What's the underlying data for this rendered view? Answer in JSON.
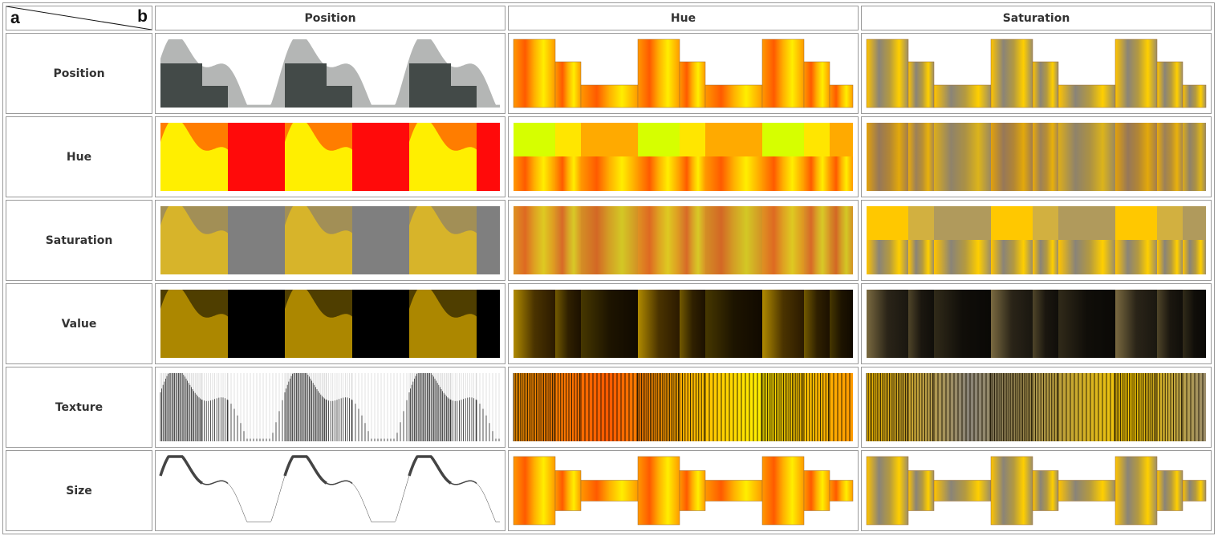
{
  "corner": {
    "a": "a",
    "b": "b"
  },
  "columns": [
    "Position",
    "Hue",
    "Saturation"
  ],
  "rows": [
    "Position",
    "Hue",
    "Saturation",
    "Value",
    "Texture",
    "Size"
  ],
  "colors": {
    "position_dark": "#434a48",
    "position_light": "#b4b6b5",
    "hue_levels": [
      "#ff0a0a",
      "#ff7d00",
      "#ffef00"
    ],
    "saturation_levels": [
      "#7f7f7f",
      "#a28f56",
      "#d7b42a"
    ],
    "value_levels": [
      "#000000",
      "#4f3e00",
      "#ac8700"
    ],
    "band_hue_levels": [
      "#d6ff00",
      "#ffe600",
      "#ffaa00"
    ],
    "band_saturation_levels": [
      "#ffc800",
      "#d2b040",
      "#b09a5c"
    ],
    "gradient_orange": "#ff8400",
    "gradient_yellow": "#ffea00",
    "gradient_gray": "#8a8478"
  }
}
